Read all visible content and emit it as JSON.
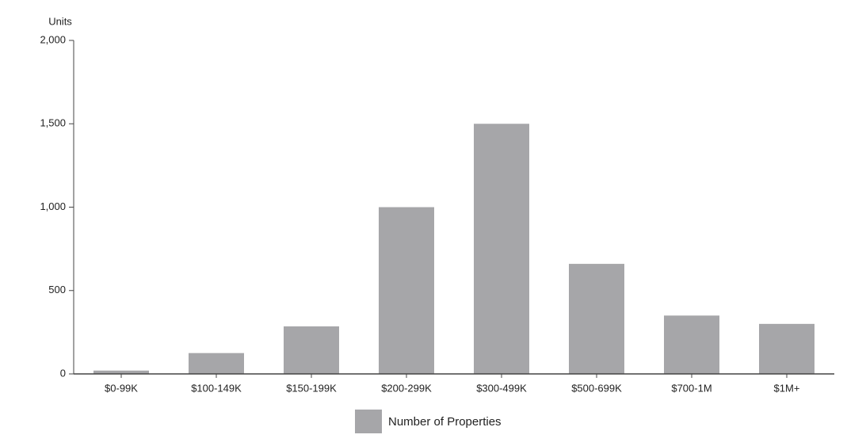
{
  "chart_data": {
    "type": "bar",
    "y_label": "Units",
    "categories": [
      "$0-99K",
      "$100-149K",
      "$150-199K",
      "$200-299K",
      "$300-499K",
      "$500-699K",
      "$700-1M",
      "$1M+"
    ],
    "series": [
      {
        "name": "Number of Properties",
        "color": "#a6a6a9",
        "values": [
          20,
          125,
          285,
          1000,
          1500,
          660,
          350,
          300
        ]
      }
    ],
    "ylim": [
      0,
      2000
    ],
    "yticks": [
      0,
      500,
      {
        "value": 1000,
        "label": "1,000"
      },
      {
        "value": 1500,
        "label": "1,500"
      },
      {
        "value": 2000,
        "label": "2,000"
      }
    ],
    "grid": false,
    "legend": "bottom"
  }
}
